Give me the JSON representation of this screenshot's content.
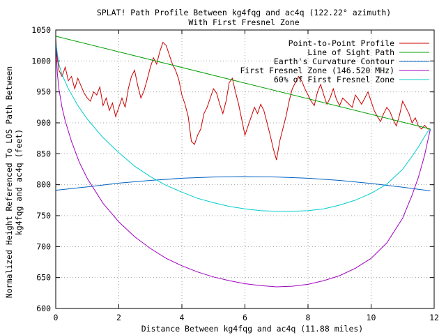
{
  "chart_data": {
    "type": "line",
    "title": "SPLAT! Path Profile Between kg4fqg and ac4q (122.22° azimuth)",
    "subtitle": "With First Fresnel Zone",
    "xlabel": "Distance Between kg4fqg and ac4q (11.88 miles)",
    "ylabel_line1": "Normalized Height Referenced To LOS Path Between",
    "ylabel_line2": "kg4fqg and ac4q (feet)",
    "xlim": [
      0,
      12
    ],
    "ylim": [
      600,
      1050
    ],
    "xticks": [
      "0",
      "2",
      "4",
      "6",
      "8",
      "10",
      "12"
    ],
    "yticks": [
      "600",
      "650",
      "700",
      "750",
      "800",
      "850",
      "900",
      "950",
      "1000",
      "1050"
    ],
    "grid": true,
    "legend_position": "top-right",
    "series": [
      {
        "name": "Point-to-Point Profile",
        "color": "#cc0000",
        "x": [
          0,
          0.05,
          0.1,
          0.2,
          0.3,
          0.4,
          0.5,
          0.6,
          0.7,
          0.8,
          0.9,
          1.0,
          1.1,
          1.2,
          1.3,
          1.4,
          1.5,
          1.6,
          1.7,
          1.8,
          1.9,
          2.0,
          2.1,
          2.2,
          2.3,
          2.4,
          2.5,
          2.6,
          2.7,
          2.8,
          2.9,
          3.0,
          3.1,
          3.2,
          3.3,
          3.4,
          3.5,
          3.6,
          3.7,
          3.8,
          3.9,
          4.0,
          4.1,
          4.2,
          4.3,
          4.4,
          4.5,
          4.6,
          4.7,
          4.8,
          4.9,
          5.0,
          5.1,
          5.2,
          5.3,
          5.4,
          5.5,
          5.6,
          5.7,
          5.8,
          5.9,
          6.0,
          6.1,
          6.2,
          6.3,
          6.4,
          6.5,
          6.6,
          6.7,
          6.8,
          6.9,
          7.0,
          7.1,
          7.2,
          7.3,
          7.4,
          7.5,
          7.6,
          7.7,
          7.8,
          7.9,
          8.0,
          8.1,
          8.2,
          8.3,
          8.4,
          8.5,
          8.6,
          8.7,
          8.8,
          8.9,
          9.0,
          9.1,
          9.2,
          9.3,
          9.4,
          9.5,
          9.6,
          9.7,
          9.8,
          9.9,
          10.0,
          10.1,
          10.2,
          10.3,
          10.4,
          10.5,
          10.6,
          10.7,
          10.8,
          10.9,
          11.0,
          11.1,
          11.2,
          11.3,
          11.4,
          11.5,
          11.6,
          11.7,
          11.8,
          11.88
        ],
        "y": [
          1035,
          1005,
          985,
          975,
          990,
          968,
          975,
          955,
          972,
          960,
          948,
          940,
          935,
          950,
          945,
          958,
          928,
          940,
          920,
          932,
          910,
          925,
          940,
          925,
          955,
          975,
          985,
          960,
          940,
          952,
          970,
          990,
          1005,
          995,
          1015,
          1030,
          1025,
          1010,
          995,
          985,
          970,
          945,
          930,
          910,
          870,
          865,
          880,
          890,
          915,
          925,
          940,
          955,
          948,
          930,
          915,
          935,
          965,
          972,
          950,
          930,
          905,
          880,
          895,
          910,
          925,
          915,
          930,
          920,
          900,
          880,
          858,
          840,
          870,
          890,
          910,
          935,
          955,
          965,
          975,
          968,
          955,
          945,
          935,
          928,
          950,
          962,
          945,
          930,
          940,
          955,
          938,
          928,
          940,
          935,
          930,
          925,
          945,
          938,
          930,
          940,
          950,
          935,
          920,
          910,
          902,
          915,
          925,
          918,
          905,
          895,
          912,
          935,
          925,
          915,
          900,
          908,
          895,
          890,
          896,
          890,
          890
        ]
      },
      {
        "name": "Line of Sight Path",
        "color": "#00a000",
        "x": [
          0,
          11.88
        ],
        "y": [
          1040,
          890
        ]
      },
      {
        "name": "Earth's Curvature Contour",
        "color": "#0060c0",
        "x": [
          0,
          1,
          2,
          3,
          4,
          5,
          5.94,
          7,
          8,
          9,
          10,
          11,
          11.88
        ],
        "y": [
          791,
          796.5,
          802.5,
          807,
          810.5,
          812.5,
          813,
          812.5,
          810.5,
          807,
          802,
          796,
          790
        ]
      },
      {
        "name": "First Fresnel Zone (146.520 MHz)",
        "color": "#a000c0",
        "x": [
          0,
          0.05,
          0.1,
          0.2,
          0.3,
          0.5,
          0.75,
          1,
          1.5,
          2,
          2.5,
          3,
          3.5,
          4,
          4.5,
          5,
          5.5,
          6,
          6.5,
          7,
          7.5,
          8,
          8.5,
          9,
          9.5,
          10,
          10.5,
          11,
          11.3,
          11.5,
          11.7,
          11.8,
          11.85,
          11.88
        ],
        "y": [
          1030,
          980,
          955,
          925,
          903,
          870,
          836,
          810,
          770,
          740,
          716,
          697,
          681,
          669,
          659,
          651,
          645,
          640,
          637,
          635,
          636,
          639,
          645,
          653,
          665,
          681,
          706,
          746,
          783,
          812,
          848,
          872,
          883,
          890
        ]
      },
      {
        "name": "60% of First Fresnel Zone",
        "color": "#00cccc",
        "x": [
          0,
          0.1,
          0.2,
          0.4,
          0.7,
          1,
          1.5,
          2,
          2.5,
          3,
          3.5,
          4,
          4.5,
          5,
          5.5,
          6,
          6.5,
          7,
          7.5,
          8,
          8.5,
          9,
          9.5,
          10,
          10.5,
          11,
          11.3,
          11.5,
          11.7,
          11.8,
          11.88
        ],
        "y": [
          1030,
          995,
          978,
          955,
          928,
          906,
          876,
          852,
          830,
          813,
          799,
          788,
          778,
          771,
          765,
          761,
          758,
          757,
          757,
          758,
          761,
          767,
          775,
          786,
          801,
          825,
          846,
          861,
          878,
          886,
          890
        ]
      }
    ]
  }
}
